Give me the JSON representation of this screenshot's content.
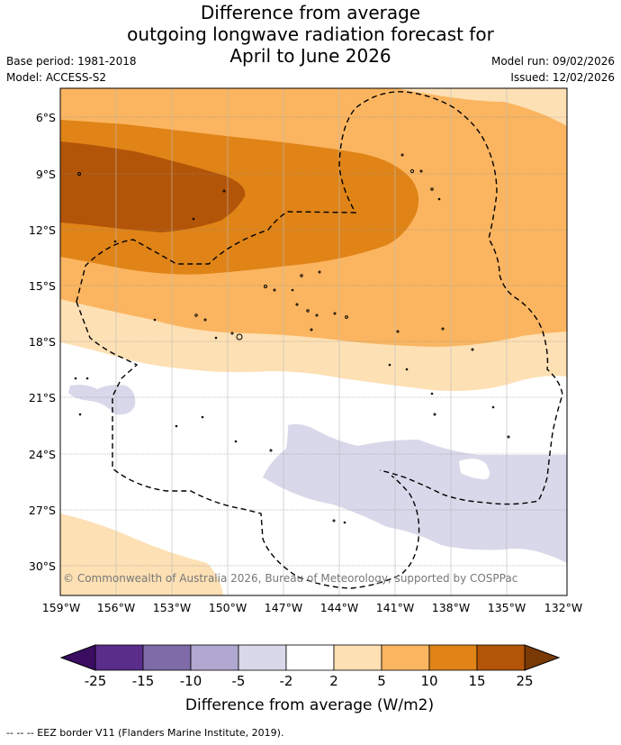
{
  "title": {
    "line1": "Difference from average",
    "line2": "outgoing longwave radiation forecast for",
    "line3": "April to June 2026"
  },
  "meta": {
    "base_period": "Base period: 1981-2018",
    "model": "Model: ACCESS-S2",
    "model_run": "Model run: 09/02/2026",
    "issued": "Issued: 12/02/2026"
  },
  "map": {
    "lat_labels": [
      "6°S",
      "9°S",
      "12°S",
      "15°S",
      "18°S",
      "21°S",
      "24°S",
      "27°S",
      "30°S"
    ],
    "lon_labels": [
      "159°W",
      "156°W",
      "153°W",
      "150°W",
      "147°W",
      "144°W",
      "141°W",
      "138°W",
      "135°W",
      "132°W"
    ],
    "copyright": "© Commonwealth of Australia 2026, Bureau of Meteorology, supported by COSPPac"
  },
  "colorbar": {
    "ticks": [
      "-25",
      "-15",
      "-10",
      "-5",
      "-2",
      "2",
      "5",
      "10",
      "15",
      "25"
    ],
    "colors": [
      "#5a2d8a",
      "#7e6ba8",
      "#b0a8d0",
      "#d8d8ea",
      "#ffffff",
      "#fde0b4",
      "#fbb560",
      "#e08418",
      "#b35508"
    ],
    "below_color": "#3a0d63",
    "above_color": "#7a3a05",
    "label": "Difference from average (W/m2)"
  },
  "footer": "--  --  -- EEZ border V11 (Flanders Marine Institute, 2019)."
}
